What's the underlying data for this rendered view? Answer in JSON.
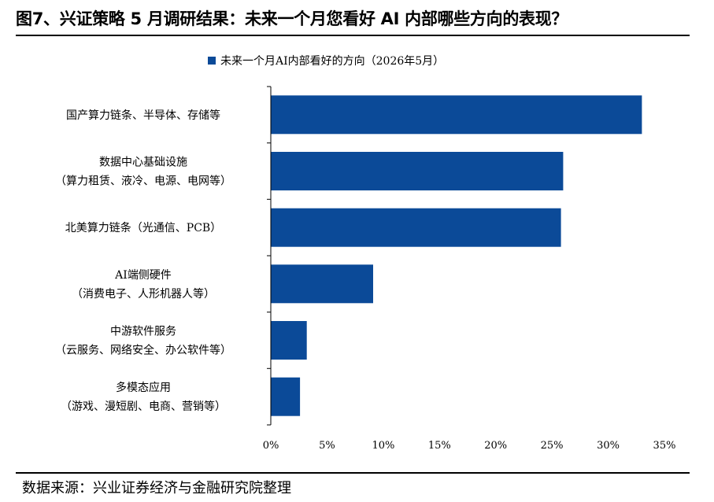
{
  "header": {
    "title": "图7、兴证策略 5 月调研结果：未来一个月您看好 AI 内部哪些方向的表现？"
  },
  "footer": {
    "source": "数据来源：兴业证券经济与金融研究院整理"
  },
  "chart_data": {
    "type": "bar",
    "orientation": "horizontal",
    "categories": [
      [
        "国产算力链条、半导体、存储等"
      ],
      [
        "数据中心基础设施",
        "（算力租赁、液冷、电源、电网等）"
      ],
      [
        "北美算力链条（光通信、PCB）"
      ],
      [
        "AI端侧硬件",
        "（消费电子、人形机器人等）"
      ],
      [
        "中游软件服务",
        "（云服务、网络安全、办公软件等）"
      ],
      [
        "多模态应用",
        "（游戏、漫短剧、电商、营销等）"
      ]
    ],
    "series": [
      {
        "name": "未来一个月AI内部看好的方向（2026年5月）",
        "values": [
          33.0,
          26.0,
          25.8,
          9.1,
          3.2,
          2.6
        ],
        "color": "#0b4a98"
      }
    ],
    "x_ticks": [
      "0%",
      "5%",
      "10%",
      "15%",
      "20%",
      "25%",
      "30%",
      "35%"
    ],
    "xlim": [
      0,
      35
    ],
    "unit": "%",
    "grid": false,
    "legend_position": "top-center"
  }
}
